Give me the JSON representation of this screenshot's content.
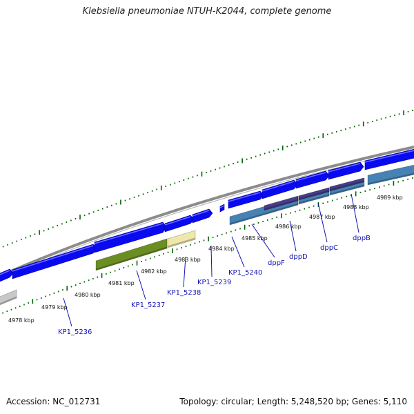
{
  "title": "Klebsiella pneumoniae NTUH-K2044, complete genome",
  "footer": {
    "accession": "Accession: NC_012731",
    "topology": "Topology: circular; Length: 5,248,520 bp; Genes: 5,110"
  },
  "ticks": [
    "4978 kbp",
    "4979 kbp",
    "4980 kbp",
    "4981 kbp",
    "4982 kbp",
    "4983 kbp",
    "4984 kbp",
    "4985 kbp",
    "4986 kbp",
    "4987 kbp",
    "4988 kbp",
    "4989 kbp"
  ],
  "genes": [
    "KP1_5236",
    "KP1_5237",
    "KP1_5238",
    "KP1_5239",
    "KP1_5240",
    "dppF",
    "dppD",
    "dppC",
    "dppB"
  ],
  "colors": {
    "backbone": "#8c8c8c",
    "gene_blue": "#0a0af0",
    "cds_olive": "#6b8e23",
    "cds_yellow": "#eee8aa",
    "cds_steel": "#4682b4",
    "cds_purple": "#483d8b",
    "cds_gray": "#c8c8c8",
    "tick_green": "#006400",
    "label_blue": "#1414b4"
  }
}
